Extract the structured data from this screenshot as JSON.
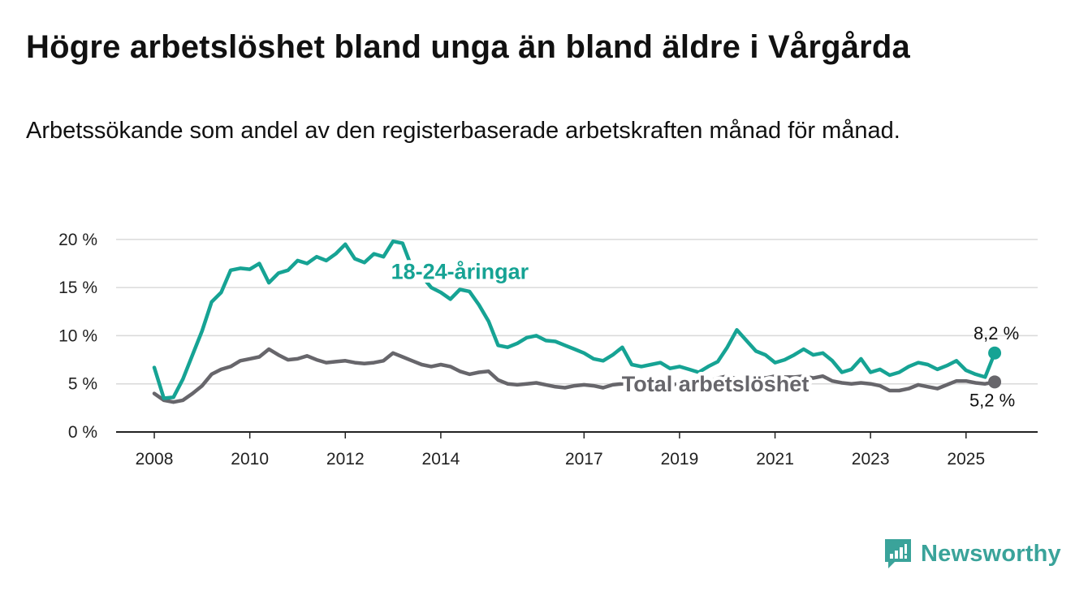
{
  "title": "Högre arbetslöshet bland unga än bland äldre i Vårgårda",
  "subtitle": "Arbetssökande som andel av den registerbaserade arbetskraften månad för månad.",
  "brand": {
    "name": "Newsworthy"
  },
  "chart_data": {
    "type": "line",
    "y_ticks": [
      0,
      5,
      10,
      15,
      20
    ],
    "y_tick_labels": [
      "0 %",
      "5 %",
      "10 %",
      "15 %",
      "20 %"
    ],
    "x_ticks": [
      2008,
      2010,
      2012,
      2014,
      2017,
      2019,
      2021,
      2023,
      2025
    ],
    "x_tick_labels": [
      "2008",
      "2010",
      "2012",
      "2014",
      "2017",
      "2019",
      "2021",
      "2023",
      "2025"
    ],
    "xlim": [
      2007.2,
      2026.5
    ],
    "ylim": [
      0,
      21
    ],
    "grid": true,
    "series": [
      {
        "name": "18-24-åringar",
        "color": "#16a394",
        "end_label": "8,2 %",
        "x": [
          2008.0,
          2008.2,
          2008.4,
          2008.6,
          2008.8,
          2009.0,
          2009.2,
          2009.4,
          2009.6,
          2009.8,
          2010.0,
          2010.2,
          2010.4,
          2010.6,
          2010.8,
          2011.0,
          2011.2,
          2011.4,
          2011.6,
          2011.8,
          2012.0,
          2012.2,
          2012.4,
          2012.6,
          2012.8,
          2013.0,
          2013.2,
          2013.4,
          2013.6,
          2013.8,
          2014.0,
          2014.2,
          2014.4,
          2014.6,
          2014.8,
          2015.0,
          2015.2,
          2015.4,
          2015.6,
          2015.8,
          2016.0,
          2016.2,
          2016.4,
          2016.6,
          2016.8,
          2017.0,
          2017.2,
          2017.4,
          2017.6,
          2017.8,
          2018.0,
          2018.2,
          2018.4,
          2018.6,
          2018.8,
          2019.0,
          2019.2,
          2019.4,
          2019.6,
          2019.8,
          2020.0,
          2020.2,
          2020.4,
          2020.6,
          2020.8,
          2021.0,
          2021.2,
          2021.4,
          2021.6,
          2021.8,
          2022.0,
          2022.2,
          2022.4,
          2022.6,
          2022.8,
          2023.0,
          2023.2,
          2023.4,
          2023.6,
          2023.8,
          2024.0,
          2024.2,
          2024.4,
          2024.6,
          2024.8,
          2025.0,
          2025.2,
          2025.4,
          2025.6
        ],
        "values": [
          6.7,
          3.5,
          3.6,
          5.5,
          8.0,
          10.5,
          13.5,
          14.5,
          16.8,
          17.0,
          16.9,
          17.5,
          15.5,
          16.5,
          16.8,
          17.8,
          17.5,
          18.2,
          17.8,
          18.5,
          19.5,
          18.0,
          17.6,
          18.5,
          18.2,
          19.8,
          19.6,
          17.0,
          16.2,
          15.0,
          14.5,
          13.8,
          14.8,
          14.6,
          13.2,
          11.5,
          9.0,
          8.8,
          9.2,
          9.8,
          10.0,
          9.5,
          9.4,
          9.0,
          8.6,
          8.2,
          7.6,
          7.4,
          8.0,
          8.8,
          7.0,
          6.8,
          7.0,
          7.2,
          6.6,
          6.8,
          6.5,
          6.2,
          6.8,
          7.3,
          8.8,
          10.6,
          9.5,
          8.4,
          8.0,
          7.2,
          7.5,
          8.0,
          8.6,
          8.0,
          8.2,
          7.4,
          6.2,
          6.5,
          7.6,
          6.2,
          6.5,
          5.9,
          6.2,
          6.8,
          7.2,
          7.0,
          6.5,
          6.9,
          7.4,
          6.4,
          6.0,
          5.7,
          8.2
        ]
      },
      {
        "name": "Total arbetslöshet",
        "color": "#67666b",
        "end_label": "5,2 %",
        "x": [
          2008.0,
          2008.2,
          2008.4,
          2008.6,
          2008.8,
          2009.0,
          2009.2,
          2009.4,
          2009.6,
          2009.8,
          2010.0,
          2010.2,
          2010.4,
          2010.6,
          2010.8,
          2011.0,
          2011.2,
          2011.4,
          2011.6,
          2011.8,
          2012.0,
          2012.2,
          2012.4,
          2012.6,
          2012.8,
          2013.0,
          2013.2,
          2013.4,
          2013.6,
          2013.8,
          2014.0,
          2014.2,
          2014.4,
          2014.6,
          2014.8,
          2015.0,
          2015.2,
          2015.4,
          2015.6,
          2015.8,
          2016.0,
          2016.2,
          2016.4,
          2016.6,
          2016.8,
          2017.0,
          2017.2,
          2017.4,
          2017.6,
          2017.8,
          2018.0,
          2018.2,
          2018.4,
          2018.6,
          2018.8,
          2019.0,
          2019.2,
          2019.4,
          2019.6,
          2019.8,
          2020.0,
          2020.2,
          2020.4,
          2020.6,
          2020.8,
          2021.0,
          2021.2,
          2021.4,
          2021.6,
          2021.8,
          2022.0,
          2022.2,
          2022.4,
          2022.6,
          2022.8,
          2023.0,
          2023.2,
          2023.4,
          2023.6,
          2023.8,
          2024.0,
          2024.2,
          2024.4,
          2024.6,
          2024.8,
          2025.0,
          2025.2,
          2025.4,
          2025.6
        ],
        "values": [
          4.0,
          3.3,
          3.1,
          3.3,
          4.0,
          4.8,
          6.0,
          6.5,
          6.8,
          7.4,
          7.6,
          7.8,
          8.6,
          8.0,
          7.5,
          7.6,
          7.9,
          7.5,
          7.2,
          7.3,
          7.4,
          7.2,
          7.1,
          7.2,
          7.4,
          8.2,
          7.8,
          7.4,
          7.0,
          6.8,
          7.0,
          6.8,
          6.3,
          6.0,
          6.2,
          6.3,
          5.4,
          5.0,
          4.9,
          5.0,
          5.1,
          4.9,
          4.7,
          4.6,
          4.8,
          4.9,
          4.8,
          4.6,
          4.9,
          5.0,
          5.1,
          5.0,
          5.2,
          5.1,
          4.9,
          5.0,
          5.3,
          5.4,
          5.2,
          5.6,
          5.8,
          5.5,
          5.4,
          5.8,
          5.6,
          5.8,
          5.7,
          5.7,
          5.8,
          5.6,
          5.8,
          5.3,
          5.1,
          5.0,
          5.1,
          5.0,
          4.8,
          4.3,
          4.3,
          4.5,
          4.9,
          4.7,
          4.5,
          4.9,
          5.3,
          5.3,
          5.1,
          5.0,
          5.2
        ]
      }
    ]
  }
}
